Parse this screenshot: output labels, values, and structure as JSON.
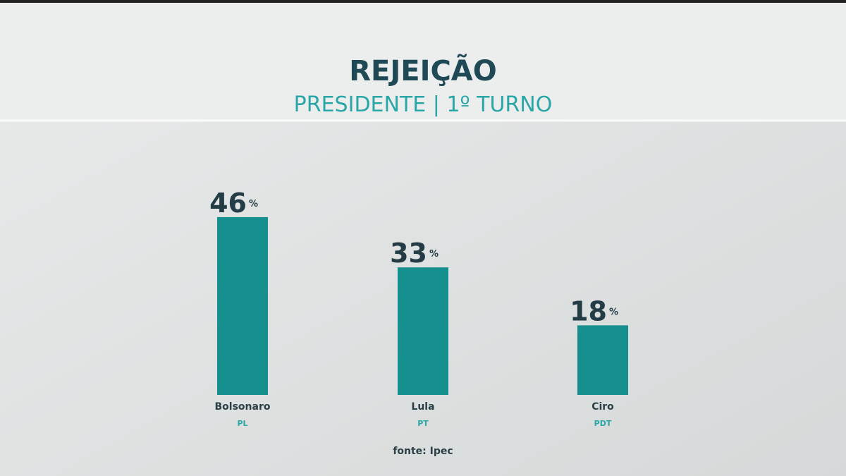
{
  "chart_data": {
    "type": "bar",
    "title": "REJEIÇÃO",
    "subtitle": "PRESIDENTE | 1º TURNO",
    "categories": [
      "Bolsonaro",
      "Lula",
      "Ciro"
    ],
    "parties": [
      "PL",
      "PT",
      "PDT"
    ],
    "values": [
      46,
      33,
      18
    ],
    "unit": "%",
    "color": "#16908f",
    "source": "fonte: Ipec"
  }
}
